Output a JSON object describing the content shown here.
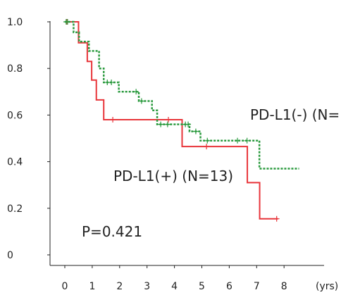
{
  "chart_data": {
    "type": "line",
    "subtype": "kaplan-meier",
    "title": "",
    "xlabel": "",
    "ylabel": "",
    "x_unit": "(yrs)",
    "xlim": [
      0,
      8
    ],
    "ylim": [
      0,
      1.0
    ],
    "x_ticks": [
      "0",
      "1",
      "2",
      "3",
      "4",
      "5",
      "6",
      "7",
      "8"
    ],
    "y_ticks": [
      "0",
      "0.2",
      "0.4",
      "0.6",
      "0.8",
      "1.0"
    ],
    "grid": false,
    "legend": "none",
    "series": [
      {
        "label": "PD-L1(+) (N=13)",
        "color": "#e8353a",
        "style": "solid",
        "steps": [
          [
            0,
            1.0
          ],
          [
            0.5,
            0.91
          ],
          [
            0.82,
            0.83
          ],
          [
            0.98,
            0.75
          ],
          [
            1.15,
            0.665
          ],
          [
            1.42,
            0.58
          ],
          [
            4.28,
            0.465
          ],
          [
            6.66,
            0.31
          ],
          [
            7.11,
            0.155
          ],
          [
            7.78,
            0.155
          ]
        ],
        "censored": [
          [
            0.08,
            1.0
          ],
          [
            1.75,
            0.58
          ],
          [
            3.78,
            0.58
          ],
          [
            5.17,
            0.465
          ],
          [
            7.73,
            0.155
          ]
        ]
      },
      {
        "label": "PD-L1(-) (N=",
        "color": "#2a9a3e",
        "style": "dotted",
        "steps": [
          [
            0,
            1.0
          ],
          [
            0.32,
            0.955
          ],
          [
            0.52,
            0.915
          ],
          [
            0.88,
            0.875
          ],
          [
            1.25,
            0.8
          ],
          [
            1.42,
            0.74
          ],
          [
            1.97,
            0.7
          ],
          [
            2.7,
            0.66
          ],
          [
            3.18,
            0.62
          ],
          [
            3.37,
            0.56
          ],
          [
            4.55,
            0.53
          ],
          [
            4.95,
            0.49
          ],
          [
            7.1,
            0.37
          ],
          [
            8.55,
            0.37
          ]
        ],
        "censored": [
          [
            0.05,
            1.0
          ],
          [
            0.1,
            1.0
          ],
          [
            1.55,
            0.74
          ],
          [
            1.7,
            0.74
          ],
          [
            2.6,
            0.7
          ],
          [
            2.8,
            0.66
          ],
          [
            3.5,
            0.56
          ],
          [
            3.75,
            0.56
          ],
          [
            4.4,
            0.56
          ],
          [
            4.5,
            0.56
          ],
          [
            4.78,
            0.53
          ],
          [
            5.2,
            0.49
          ],
          [
            6.3,
            0.49
          ],
          [
            6.65,
            0.49
          ]
        ]
      }
    ],
    "annotations": {
      "pvalue": "P=0.421"
    }
  }
}
